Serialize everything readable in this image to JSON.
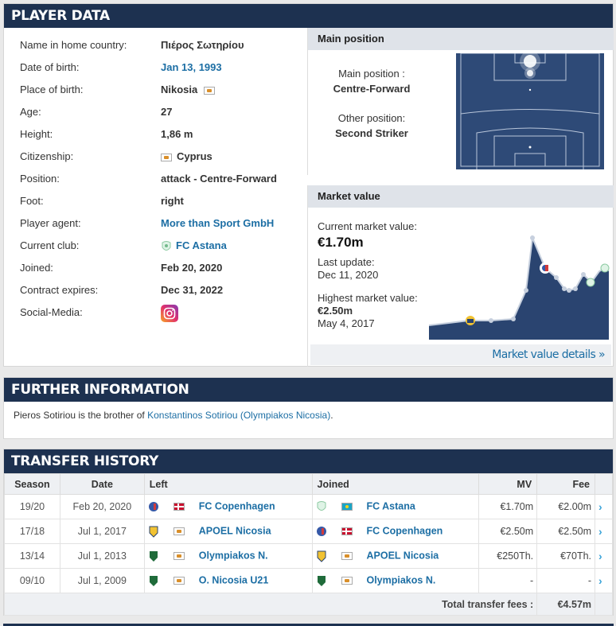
{
  "player_data": {
    "heading": "PLAYER DATA",
    "rows": [
      {
        "label": "Name in home country:",
        "value": "Πιέρος Σωτηρίου"
      },
      {
        "label": "Date of birth:",
        "value": "Jan 13, 1993"
      },
      {
        "label": "Place of birth:",
        "value": "Nikosia"
      },
      {
        "label": "Age:",
        "value": "27"
      },
      {
        "label": "Height:",
        "value": "1,86 m"
      },
      {
        "label": "Citizenship:",
        "value": "Cyprus"
      },
      {
        "label": "Position:",
        "value": "attack - Centre-Forward"
      },
      {
        "label": "Foot:",
        "value": "right"
      },
      {
        "label": "Player agent:",
        "value": "More than Sport GmbH"
      },
      {
        "label": "Current club:",
        "value": "FC Astana"
      },
      {
        "label": "Joined:",
        "value": "Feb 20, 2020"
      },
      {
        "label": "Contract expires:",
        "value": "Dec 31, 2022"
      },
      {
        "label": "Social-Media:",
        "value": "instagram-icon"
      }
    ]
  },
  "main_position": {
    "title": "Main position",
    "main_label": "Main position :",
    "main_value": "Centre-Forward",
    "other_label": "Other position:",
    "other_value": "Second Striker"
  },
  "market_value": {
    "title": "Market value",
    "current_label": "Current market value:",
    "current_value": "€1.70m",
    "update_label": "Last update:",
    "update_value": "Dec 11, 2020",
    "highest_label": "Highest market value:",
    "highest_value": "€2.50m",
    "highest_date": "May 4, 2017",
    "details_link": "Market value details »"
  },
  "further_info": {
    "heading": "FURTHER INFORMATION",
    "text_before": "Pieros Sotiriou is the brother of ",
    "link": "Konstantinos Sotiriou (Olympiakos Nicosia)",
    "text_after": "."
  },
  "transfer_history": {
    "heading": "TRANSFER HISTORY",
    "columns": [
      "Season",
      "Date",
      "Left",
      "Joined",
      "MV",
      "Fee"
    ],
    "rows": [
      {
        "season": "19/20",
        "date": "Feb 20, 2020",
        "left": "FC Copenhagen",
        "joined": "FC Astana",
        "mv": "€1.70m",
        "fee": "€2.00m"
      },
      {
        "season": "17/18",
        "date": "Jul 1, 2017",
        "left": "APOEL Nicosia",
        "joined": "FC Copenhagen",
        "mv": "€2.50m",
        "fee": "€2.50m"
      },
      {
        "season": "13/14",
        "date": "Jul 1, 2013",
        "left": "Olympiakos N.",
        "joined": "APOEL Nicosia",
        "mv": "€250Th.",
        "fee": "€70Th."
      },
      {
        "season": "09/10",
        "date": "Jul 1, 2009",
        "left": "O. Nicosia U21",
        "joined": "Olympiakos N.",
        "mv": "-",
        "fee": "-"
      }
    ],
    "total_label": "Total transfer fees :",
    "total_value": "€4.57m"
  },
  "colors": {
    "header": "#1d3150",
    "link": "#1c6ea4",
    "pitch": "#2e4a77",
    "chart_fill": "#2a4470"
  }
}
